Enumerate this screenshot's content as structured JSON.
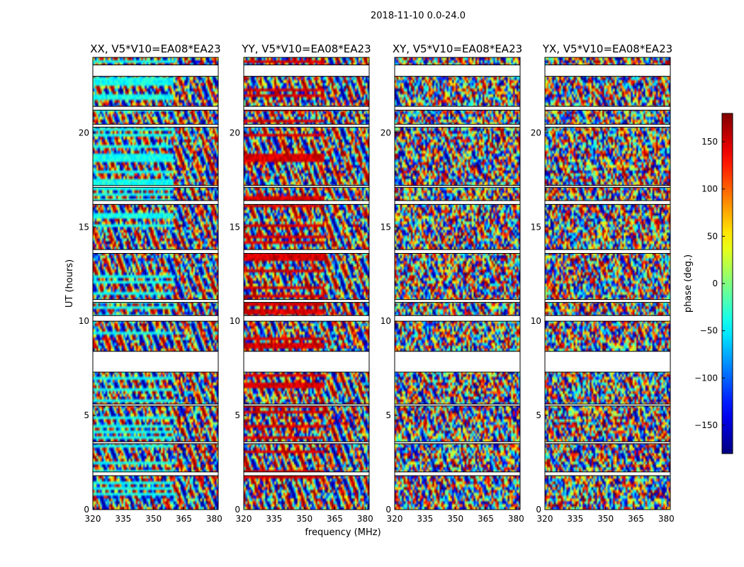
{
  "chart_data": {
    "type": "heatmap",
    "suptitle": "2018-11-10 0.0-24.0",
    "xlabel": "frequency (MHz)",
    "ylabel": "UT (hours)",
    "xlim": [
      320,
      382
    ],
    "ylim": [
      0,
      24
    ],
    "xticks": [
      320,
      335,
      350,
      365,
      380
    ],
    "yticks": [
      0,
      5,
      10,
      15,
      20
    ],
    "panels": [
      {
        "title": "XX, V5*V10=EA08*EA23",
        "base_phase": -40,
        "noise": 0.55
      },
      {
        "title": "YY, V5*V10=EA08*EA23",
        "base_phase": 150,
        "noise": 0.55
      },
      {
        "title": "XY, V5*V10=EA08*EA23",
        "base_phase": 0,
        "noise": 1.0
      },
      {
        "title": "YX, V5*V10=EA08*EA23",
        "base_phase": 0,
        "noise": 1.0
      }
    ],
    "colorbar": {
      "label": "phase (deg.)",
      "colormap": "jet",
      "range": [
        -180,
        180
      ],
      "ticks": [
        150,
        100,
        50,
        0,
        -50,
        -100,
        -150
      ]
    },
    "data_gaps_hours": [
      [
        23.0,
        23.6
      ],
      [
        21.2,
        21.4
      ],
      [
        20.3,
        20.45
      ],
      [
        17.1,
        17.2
      ],
      [
        16.2,
        16.4
      ],
      [
        13.6,
        13.8
      ],
      [
        11.0,
        11.15
      ],
      [
        10.0,
        10.3
      ],
      [
        8.4,
        7.3
      ],
      [
        5.5,
        5.6
      ],
      [
        3.6,
        3.5
      ],
      [
        2.0,
        1.8
      ]
    ]
  }
}
